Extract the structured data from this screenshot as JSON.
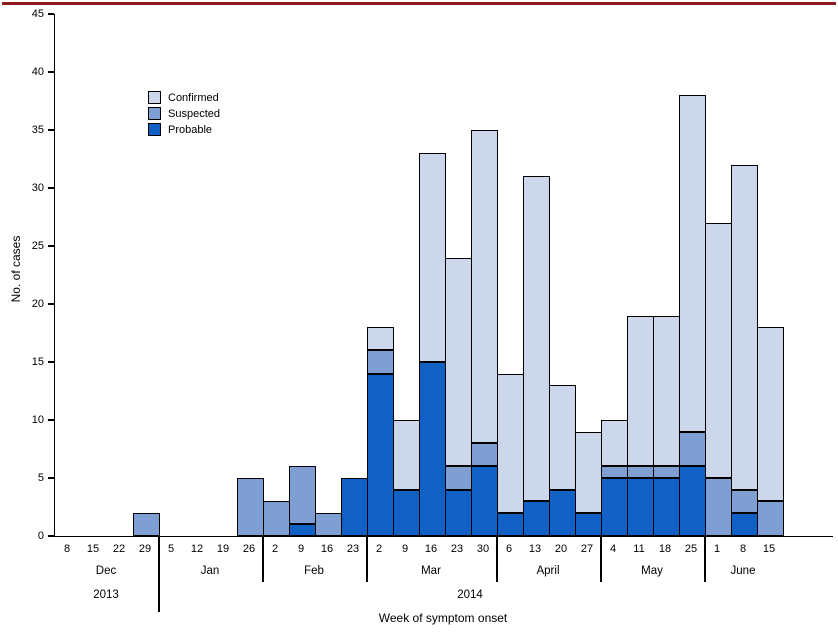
{
  "figure": {
    "top_rule_color": "#8e1b1e"
  },
  "chart_data": {
    "type": "bar",
    "stacked": true,
    "title": "",
    "ylabel": "No. of cases",
    "xlabel": "Week of symptom onset",
    "ylim": [
      0,
      45
    ],
    "yticks": [
      0,
      5,
      10,
      15,
      20,
      25,
      30,
      35,
      40,
      45
    ],
    "grid": false,
    "legend_position": "top-left-inside",
    "legend": [
      {
        "name": "Confirmed",
        "color": "#ccd7ec"
      },
      {
        "name": "Suspected",
        "color": "#7f9fd3"
      },
      {
        "name": "Probable",
        "color": "#1161c4"
      }
    ],
    "months": [
      {
        "label": "Dec",
        "year": "2013",
        "weeks": [
          "8",
          "15",
          "22",
          "29"
        ]
      },
      {
        "label": "Jan",
        "year": "2014",
        "weeks": [
          "5",
          "12",
          "19",
          "26"
        ]
      },
      {
        "label": "Feb",
        "year": "2014",
        "weeks": [
          "2",
          "9",
          "16",
          "23"
        ]
      },
      {
        "label": "Mar",
        "year": "2014",
        "weeks": [
          "2",
          "9",
          "16",
          "23",
          "30"
        ]
      },
      {
        "label": "April",
        "year": "2014",
        "weeks": [
          "6",
          "13",
          "20",
          "27"
        ]
      },
      {
        "label": "May",
        "year": "2014",
        "weeks": [
          "4",
          "11",
          "18",
          "25"
        ]
      },
      {
        "label": "June",
        "year": "2014",
        "weeks": [
          "1",
          "8",
          "15"
        ]
      }
    ],
    "categories": [
      "Dec 8",
      "Dec 15",
      "Dec 22",
      "Dec 29",
      "Jan 5",
      "Jan 12",
      "Jan 19",
      "Jan 26",
      "Feb 2",
      "Feb 9",
      "Feb 16",
      "Feb 23",
      "Mar 2",
      "Mar 9",
      "Mar 16",
      "Mar 23",
      "Mar 30",
      "Apr 6",
      "Apr 13",
      "Apr 20",
      "Apr 27",
      "May 4",
      "May 11",
      "May 18",
      "May 25",
      "Jun 1",
      "Jun 8",
      "Jun 15"
    ],
    "series": [
      {
        "name": "Probable",
        "color": "#1161c4",
        "values": [
          0,
          0,
          0,
          0,
          0,
          0,
          0,
          0,
          0,
          1,
          0,
          5,
          14,
          4,
          15,
          4,
          6,
          2,
          3,
          4,
          2,
          5,
          5,
          5,
          6,
          0,
          2,
          0
        ]
      },
      {
        "name": "Suspected",
        "color": "#7f9fd3",
        "values": [
          0,
          0,
          0,
          2,
          0,
          0,
          0,
          5,
          3,
          5,
          2,
          0,
          2,
          0,
          0,
          2,
          2,
          0,
          0,
          0,
          0,
          1,
          1,
          1,
          3,
          5,
          2,
          3
        ]
      },
      {
        "name": "Confirmed",
        "color": "#ccd7ec",
        "values": [
          0,
          0,
          0,
          0,
          0,
          0,
          0,
          0,
          0,
          0,
          0,
          0,
          2,
          6,
          18,
          18,
          27,
          12,
          28,
          9,
          7,
          4,
          13,
          13,
          29,
          22,
          28,
          15
        ]
      }
    ]
  }
}
